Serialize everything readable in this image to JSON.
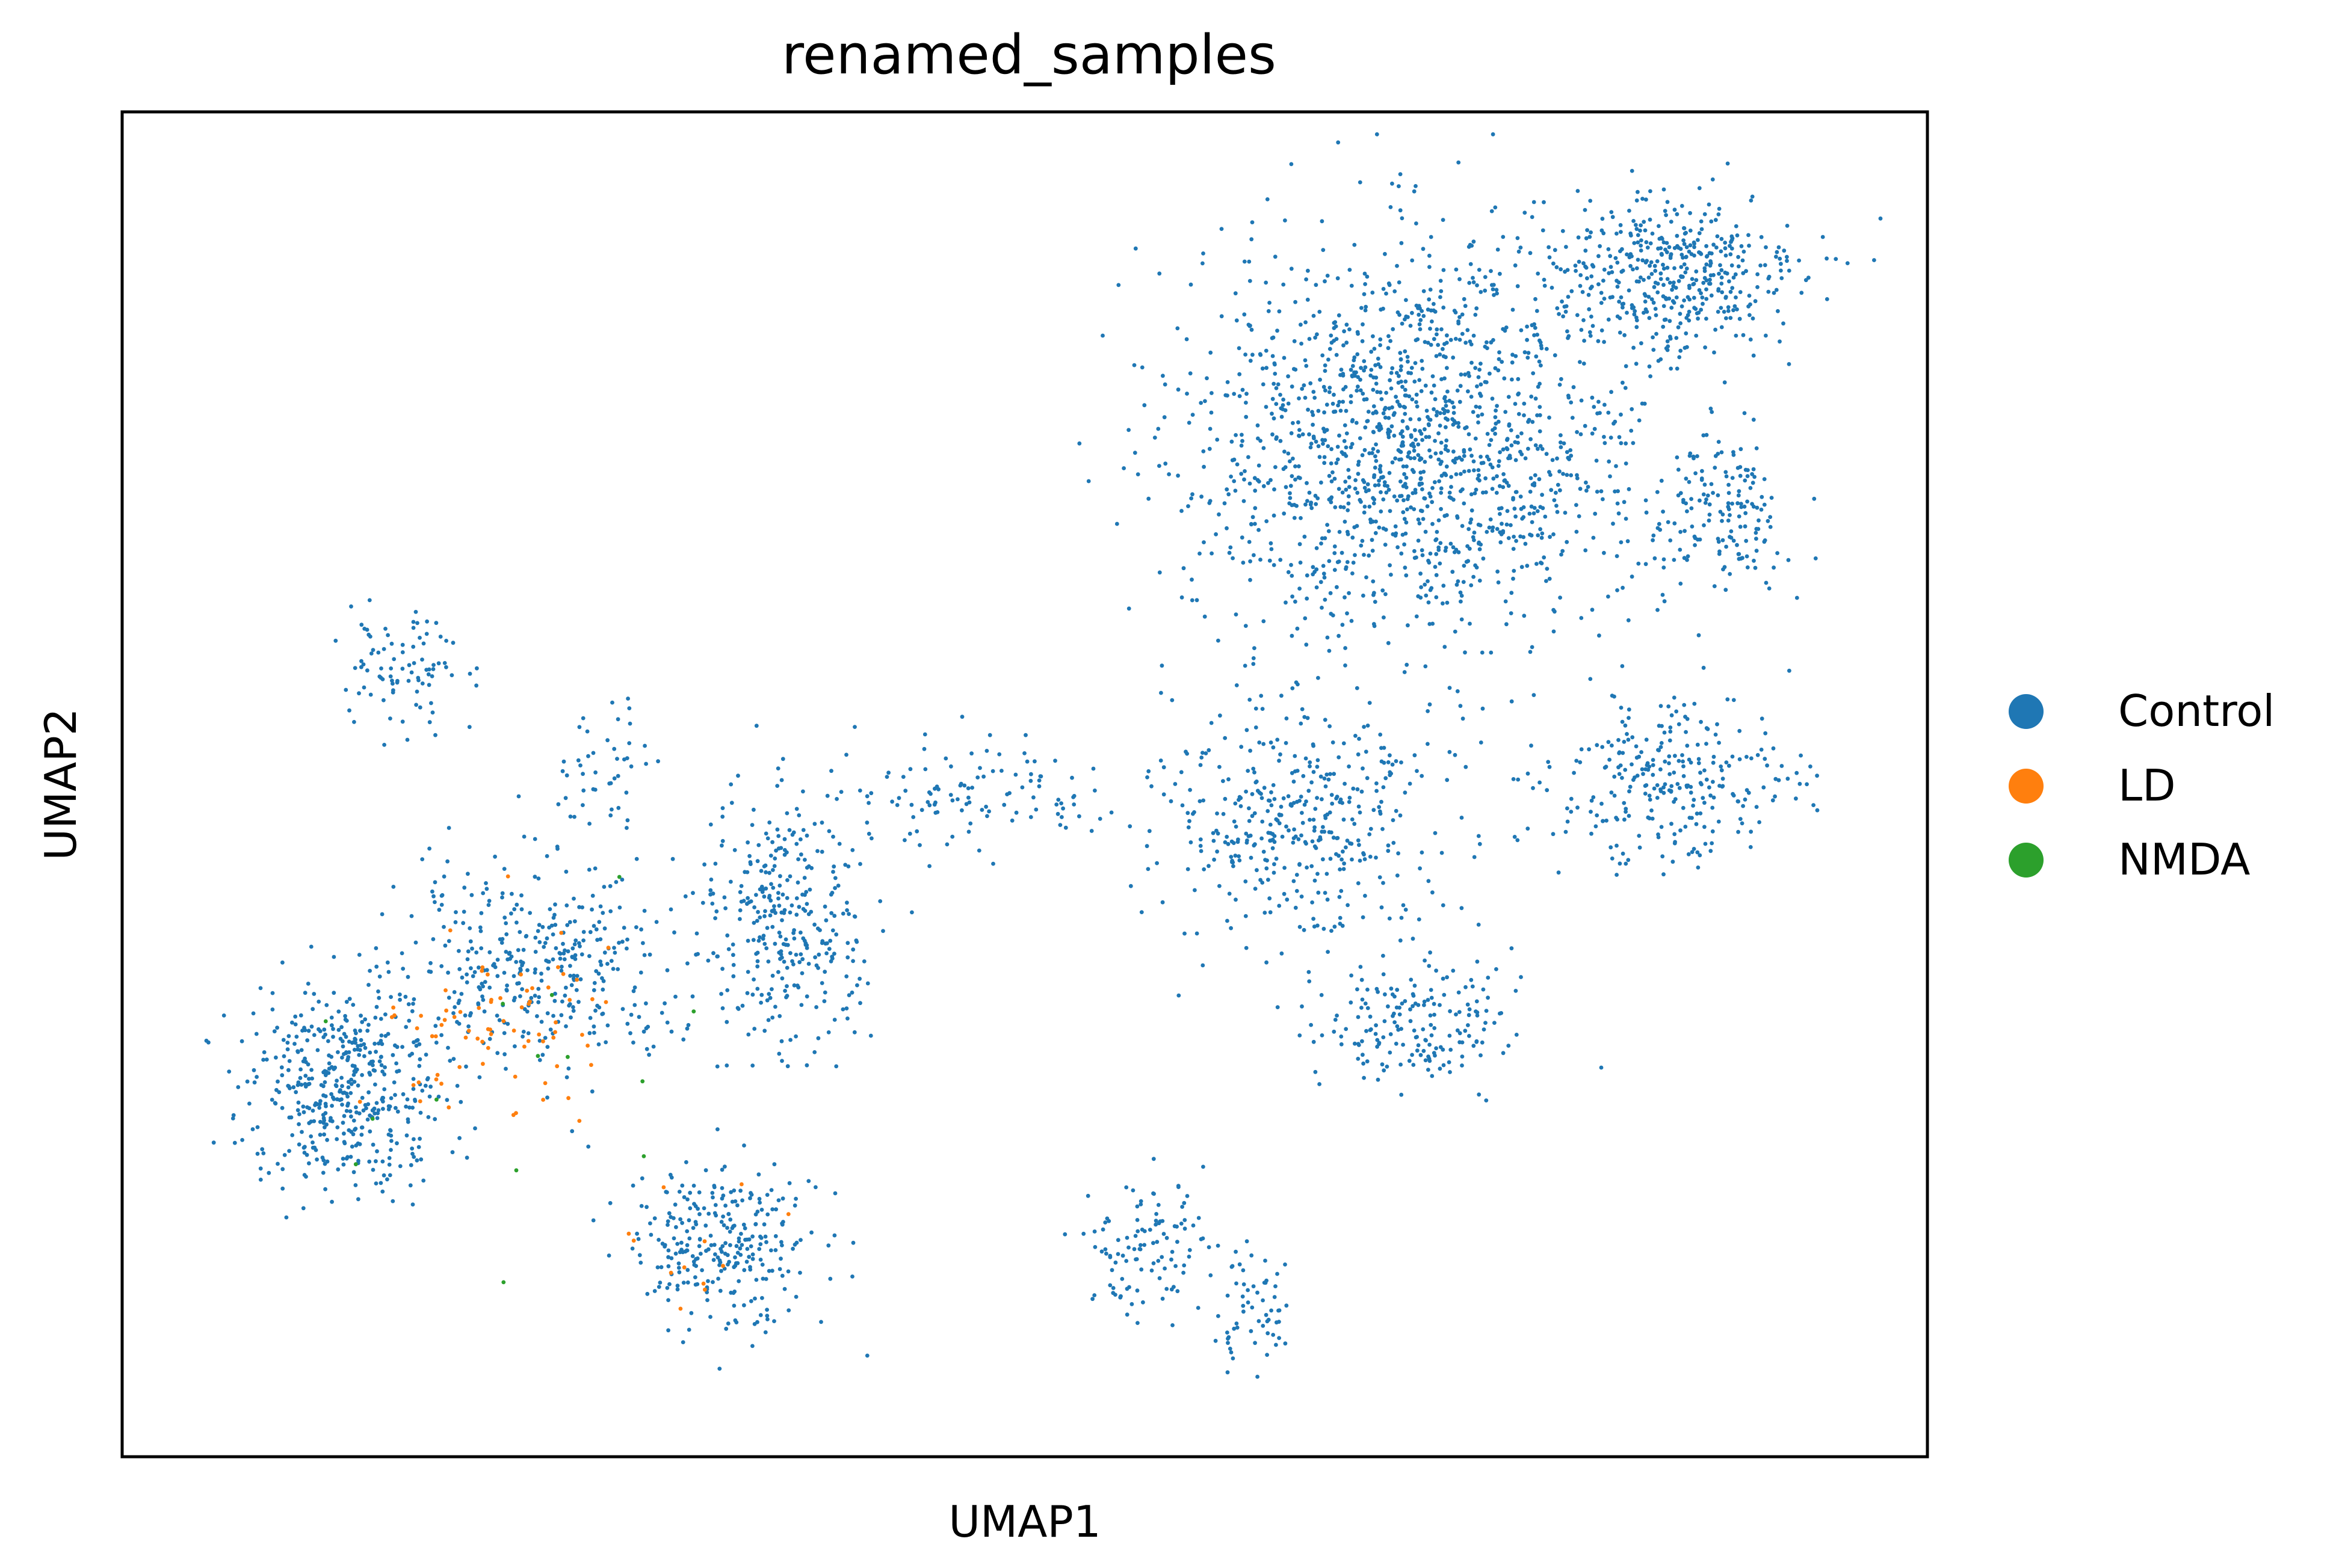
{
  "chart_data": {
    "type": "scatter",
    "title": "renamed_samples",
    "xlabel": "UMAP1",
    "ylabel": "UMAP2",
    "xlim": [
      0,
      12
    ],
    "ylim": [
      0,
      9
    ],
    "grid": false,
    "ticks": false,
    "legend_position": "right",
    "series": [
      {
        "name": "Control",
        "color": "#1f77b4"
      },
      {
        "name": "LD",
        "color": "#ff7f0e"
      },
      {
        "name": "NMDA",
        "color": "#2ca02c"
      }
    ],
    "clusters": [
      {
        "series": "Control",
        "center": [
          8.6,
          6.8
        ],
        "spread": [
          1.4,
          1.2
        ],
        "n": 1500
      },
      {
        "series": "Control",
        "center": [
          10.3,
          7.9
        ],
        "spread": [
          0.8,
          0.5
        ],
        "n": 450
      },
      {
        "series": "Control",
        "center": [
          10.6,
          6.3
        ],
        "spread": [
          0.45,
          0.45
        ],
        "n": 160
      },
      {
        "series": "Control",
        "center": [
          10.3,
          4.5
        ],
        "spread": [
          0.75,
          0.5
        ],
        "n": 280
      },
      {
        "series": "Control",
        "center": [
          7.8,
          4.3
        ],
        "spread": [
          0.85,
          0.75
        ],
        "n": 420
      },
      {
        "series": "Control",
        "center": [
          8.6,
          2.9
        ],
        "spread": [
          0.6,
          0.4
        ],
        "n": 190
      },
      {
        "series": "Control",
        "center": [
          6.8,
          1.4
        ],
        "spread": [
          0.35,
          0.45
        ],
        "n": 110
      },
      {
        "series": "Control",
        "center": [
          7.5,
          1.0
        ],
        "spread": [
          0.25,
          0.35
        ],
        "n": 60
      },
      {
        "series": "Control",
        "center": [
          1.9,
          5.3
        ],
        "spread": [
          0.35,
          0.35
        ],
        "n": 90
      },
      {
        "series": "Control",
        "center": [
          3.2,
          4.6
        ],
        "spread": [
          0.35,
          0.35
        ],
        "n": 45
      },
      {
        "series": "Control",
        "center": [
          1.5,
          2.5
        ],
        "spread": [
          0.6,
          0.6
        ],
        "n": 480
      },
      {
        "series": "Control",
        "center": [
          2.8,
          3.3
        ],
        "spread": [
          0.9,
          0.6
        ],
        "n": 380
      },
      {
        "series": "Control",
        "center": [
          4.4,
          3.6
        ],
        "spread": [
          0.5,
          0.75
        ],
        "n": 330
      },
      {
        "series": "Control",
        "center": [
          4.0,
          1.4
        ],
        "spread": [
          0.55,
          0.5
        ],
        "n": 290
      },
      {
        "series": "Control",
        "center": [
          5.7,
          4.4
        ],
        "spread": [
          0.8,
          0.35
        ],
        "n": 110
      },
      {
        "series": "LD",
        "center": [
          2.5,
          2.9
        ],
        "spread": [
          0.7,
          0.6
        ],
        "n": 75
      },
      {
        "series": "LD",
        "center": [
          3.8,
          1.4
        ],
        "spread": [
          0.5,
          0.4
        ],
        "n": 12
      },
      {
        "series": "NMDA",
        "center": [
          3.0,
          2.5
        ],
        "spread": [
          1.5,
          1.2
        ],
        "n": 14
      }
    ]
  }
}
